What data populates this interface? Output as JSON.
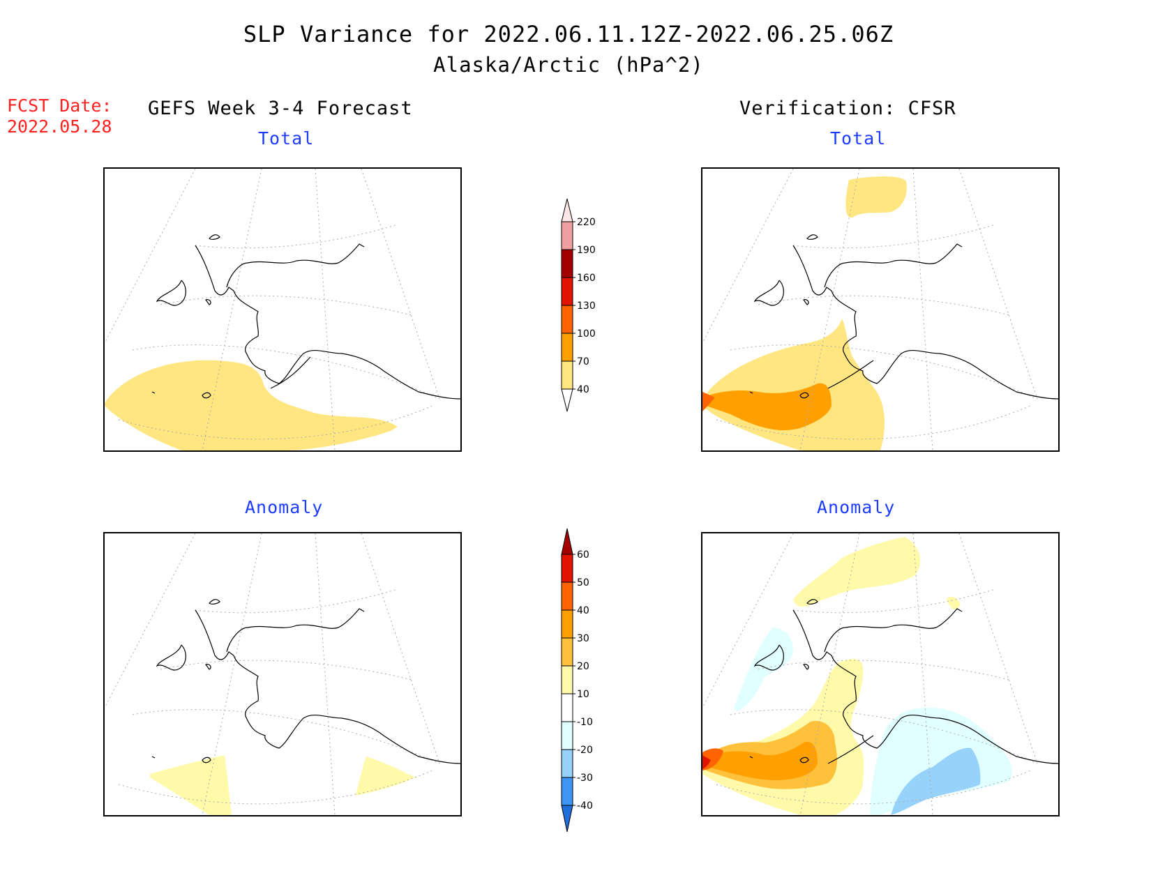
{
  "title": "SLP Variance for 2022.06.11.12Z-2022.06.25.06Z",
  "subtitle": "Alaska/Arctic (hPa^2)",
  "fcst_date_label": "FCST Date:",
  "fcst_date": "2022.05.28",
  "left_heading": "GEFS Week 3-4 Forecast",
  "right_heading": "Verification: CFSR",
  "panel_titles": {
    "top_left": "Total",
    "top_right": "Total",
    "bottom_left": "Anomaly",
    "bottom_right": "Anomaly"
  },
  "colors": {
    "title_text": "#000000",
    "fcst_text": "#ff2020",
    "panel_title_text": "#1e3cff"
  },
  "chart_data": [
    {
      "type": "heatmap",
      "name": "total_colorbar",
      "levels": [
        40,
        70,
        100,
        130,
        160,
        190,
        220
      ],
      "colors": [
        "#ffe680",
        "#ffa000",
        "#ff6400",
        "#e11400",
        "#a50000",
        "#f0a0a0",
        "#ffe6e6"
      ]
    },
    {
      "type": "heatmap",
      "name": "anomaly_colorbar",
      "levels": [
        -40,
        -30,
        -20,
        -10,
        10,
        20,
        30,
        40,
        50,
        60
      ],
      "colors": [
        "#1e6edc",
        "#3c96f5",
        "#96d2fa",
        "#e1ffff",
        "#ffffff",
        "#fffaaa",
        "#ffc03c",
        "#ffa000",
        "#ff6400",
        "#e11400",
        "#a50000"
      ]
    }
  ]
}
